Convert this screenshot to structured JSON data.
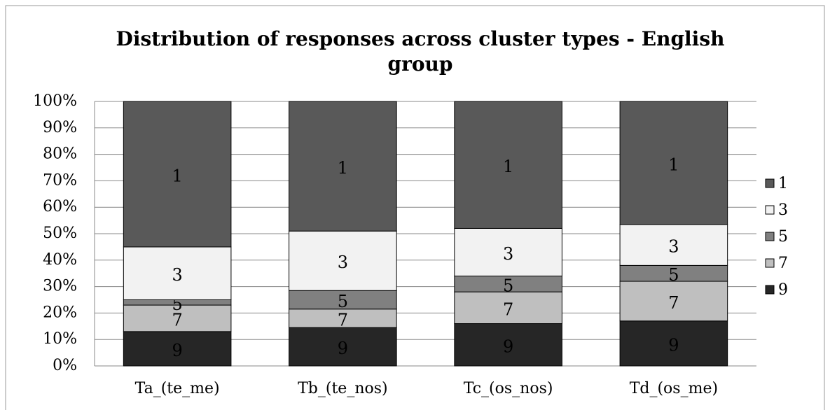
{
  "chart_data": {
    "type": "stacked_bar",
    "title": "Distribution of responses across cluster types - English group",
    "categories": [
      "Ta_(te_me)",
      "Tb_(te_nos)",
      "Tc_(os_nos)",
      "Td_(os_me)"
    ],
    "series": [
      {
        "name": "9",
        "color": "#262626",
        "values": [
          13,
          14.5,
          16,
          17
        ]
      },
      {
        "name": "7",
        "color": "#bfbfbf",
        "values": [
          10,
          7,
          12,
          15
        ]
      },
      {
        "name": "5",
        "color": "#808080",
        "values": [
          2,
          7,
          6,
          6
        ]
      },
      {
        "name": "3",
        "color": "#f2f2f2",
        "values": [
          20,
          22.5,
          18,
          15.5
        ]
      },
      {
        "name": "1",
        "color": "#595959",
        "values": [
          55,
          49,
          48,
          46.5
        ]
      }
    ],
    "ylim": [
      0,
      100
    ],
    "yticks": [
      {
        "value": 0,
        "label": "0%"
      },
      {
        "value": 10,
        "label": "10%"
      },
      {
        "value": 20,
        "label": "20%"
      },
      {
        "value": 30,
        "label": "30%"
      },
      {
        "value": 40,
        "label": "40%"
      },
      {
        "value": 50,
        "label": "50%"
      },
      {
        "value": 60,
        "label": "60%"
      },
      {
        "value": 70,
        "label": "70%"
      },
      {
        "value": 80,
        "label": "80%"
      },
      {
        "value": 90,
        "label": "90%"
      },
      {
        "value": 100,
        "label": "100%"
      }
    ],
    "grid": true,
    "legend": "right"
  }
}
